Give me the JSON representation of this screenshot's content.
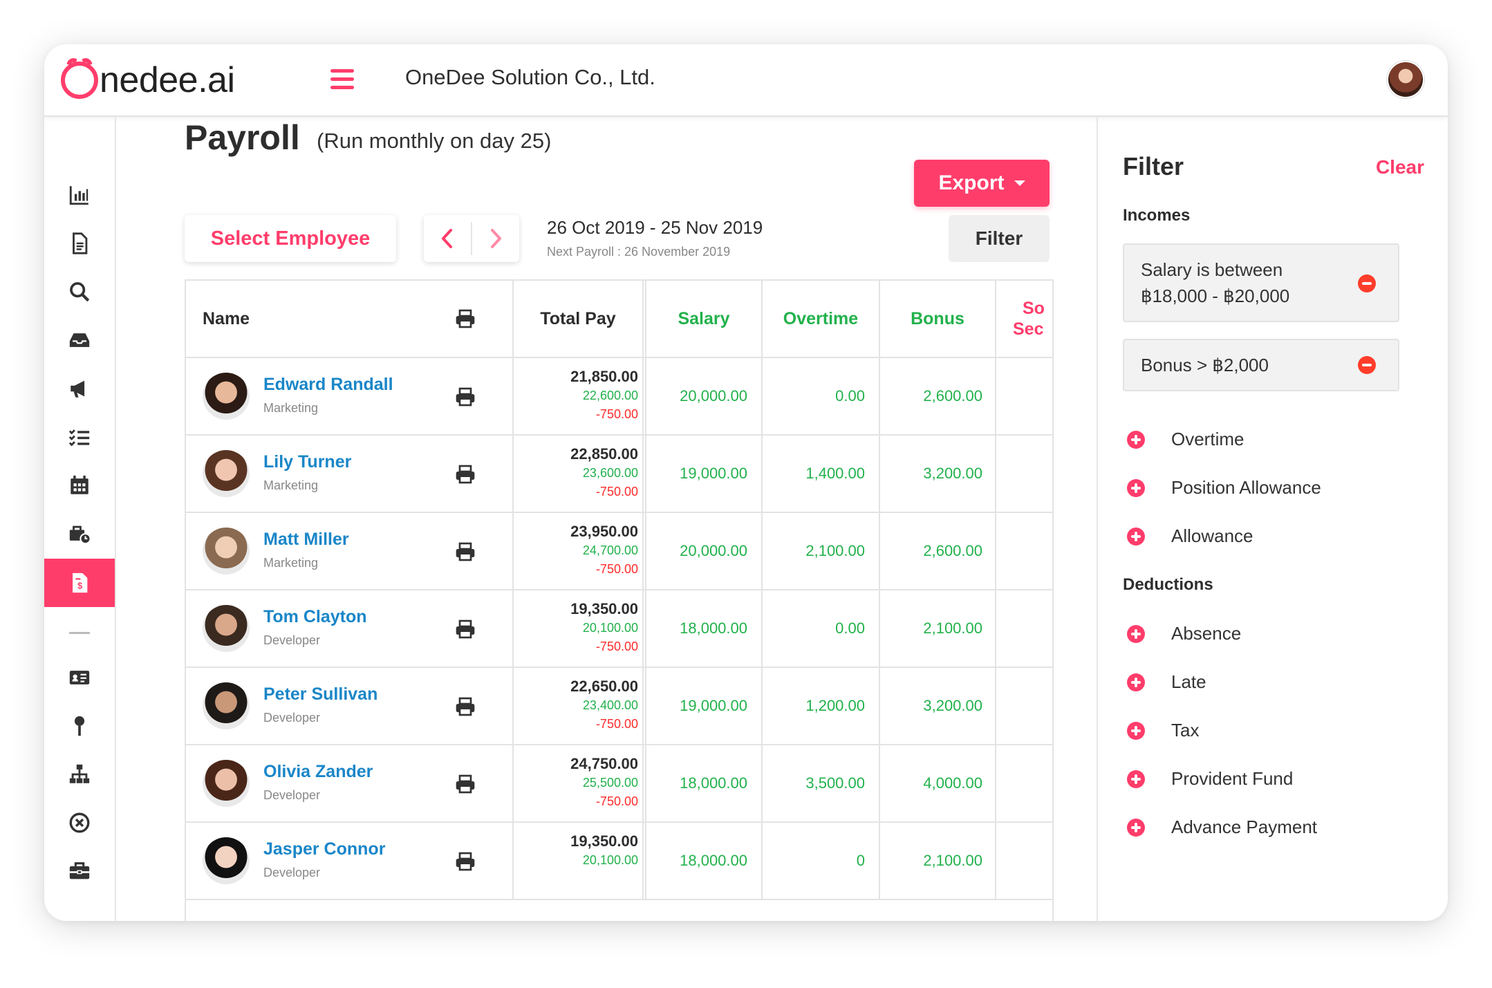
{
  "app": {
    "logo_text": "nedee.ai",
    "company": "OneDee Solution Co., Ltd.",
    "accent_color": "#ff3d6b",
    "link_color": "#1a86c8",
    "positive_color": "#22b14c"
  },
  "sidebar": {
    "icons": [
      "chart-bar-icon",
      "document-icon",
      "search-icon",
      "inbox-icon",
      "megaphone-icon",
      "checklist-icon",
      "calendar-icon",
      "briefcase-clock-icon",
      "payroll-document-icon",
      "id-card-icon",
      "pin-icon",
      "org-chart-icon",
      "close-circle-icon",
      "toolbox-icon"
    ],
    "active": "payroll-document-icon"
  },
  "page": {
    "title": "Payroll",
    "subtitle": "(Run monthly on day 25)",
    "export_label": "Export",
    "select_employee_label": "Select Employee",
    "date_range": "26 Oct 2019 - 25 Nov 2019",
    "next_payroll": "Next Payroll : 26 November 2019",
    "filter_label": "Filter"
  },
  "table": {
    "headers": {
      "name": "Name",
      "total_pay": "Total Pay",
      "salary": "Salary",
      "overtime": "Overtime",
      "bonus": "Bonus",
      "cut_line1": "So",
      "cut_line2": "Sec"
    },
    "rows": [
      {
        "name": "Edward Randall",
        "role": "Marketing",
        "total": "21,850.00",
        "gross": "22,600.00",
        "deduct": "-750.00",
        "salary": "20,000.00",
        "overtime": "0.00",
        "bonus": "2,600.00"
      },
      {
        "name": "Lily Turner",
        "role": "Marketing",
        "total": "22,850.00",
        "gross": "23,600.00",
        "deduct": "-750.00",
        "salary": "19,000.00",
        "overtime": "1,400.00",
        "bonus": "3,200.00"
      },
      {
        "name": "Matt Miller",
        "role": "Marketing",
        "total": "23,950.00",
        "gross": "24,700.00",
        "deduct": "-750.00",
        "salary": "20,000.00",
        "overtime": "2,100.00",
        "bonus": "2,600.00"
      },
      {
        "name": "Tom Clayton",
        "role": "Developer",
        "total": "19,350.00",
        "gross": "20,100.00",
        "deduct": "-750.00",
        "salary": "18,000.00",
        "overtime": "0.00",
        "bonus": "2,100.00"
      },
      {
        "name": "Peter Sullivan",
        "role": "Developer",
        "total": "22,650.00",
        "gross": "23,400.00",
        "deduct": "-750.00",
        "salary": "19,000.00",
        "overtime": "1,200.00",
        "bonus": "3,200.00"
      },
      {
        "name": "Olivia Zander",
        "role": "Developer",
        "total": "24,750.00",
        "gross": "25,500.00",
        "deduct": "-750.00",
        "salary": "18,000.00",
        "overtime": "3,500.00",
        "bonus": "4,000.00"
      },
      {
        "name": "Jasper Connor",
        "role": "Developer",
        "total": "19,350.00",
        "gross": "20,100.00",
        "deduct": "",
        "salary": "18,000.00",
        "overtime": "0",
        "bonus": "2,100.00"
      }
    ]
  },
  "filter_panel": {
    "title": "Filter",
    "clear_label": "Clear",
    "incomes_title": "Incomes",
    "active_filters": [
      {
        "line1": "Salary is between",
        "line2": "฿18,000 - ฿20,000"
      },
      {
        "line1": "Bonus > ฿2,000",
        "line2": ""
      }
    ],
    "income_options": [
      "Overtime",
      "Position Allowance",
      "Allowance"
    ],
    "deductions_title": "Deductions",
    "deduction_options": [
      "Absence",
      "Late",
      "Tax",
      "Provident Fund",
      "Advance Payment"
    ]
  }
}
